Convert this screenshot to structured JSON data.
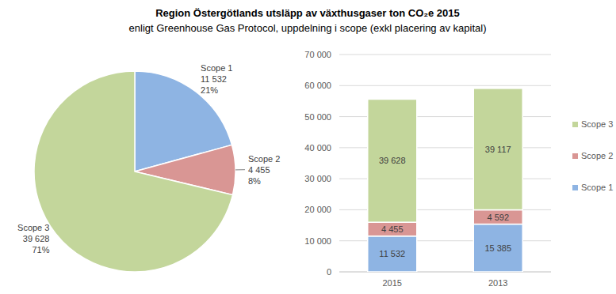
{
  "chart_data": [
    {
      "type": "pie",
      "title": "Region Östergötlands utsläpp av växthusgaser ton CO₂e 2015",
      "subtitle": "enligt Greenhouse Gas Protocol, uppdelning i scope (exkl placering av kapital)",
      "categories": [
        "Scope 1",
        "Scope 2",
        "Scope 3"
      ],
      "values": [
        11532,
        4455,
        39628
      ],
      "value_labels": [
        "11 532",
        "4 455",
        "39 628"
      ],
      "percents": [
        21,
        8,
        71
      ],
      "percent_labels": [
        "21%",
        "8%",
        "71%"
      ],
      "colors": [
        "#8eb4e3",
        "#d99694",
        "#c3d69b"
      ],
      "data_labels": true
    },
    {
      "type": "bar",
      "stacked": true,
      "categories": [
        "2015",
        "2013"
      ],
      "series": [
        {
          "name": "Scope 1",
          "color": "#8eb4e3",
          "values": [
            11532,
            15385
          ],
          "value_labels": [
            "11 532",
            "15 385"
          ]
        },
        {
          "name": "Scope 2",
          "color": "#d99694",
          "values": [
            4455,
            4592
          ],
          "value_labels": [
            "4 455",
            "4 592"
          ]
        },
        {
          "name": "Scope 3",
          "color": "#c3d69b",
          "values": [
            39628,
            39117
          ],
          "value_labels": [
            "39 628",
            "39 117"
          ]
        }
      ],
      "ylim": [
        0,
        70000
      ],
      "yticks": [
        0,
        {
          "value": 10000,
          "label": "10 000"
        },
        {
          "value": 20000,
          "label": "20 000"
        },
        {
          "value": 30000,
          "label": "30 000"
        },
        {
          "value": 40000,
          "label": "40 000"
        },
        {
          "value": 50000,
          "label": "50 000"
        },
        {
          "value": 60000,
          "label": "60 000"
        },
        {
          "value": 70000,
          "label": "70 000"
        }
      ],
      "grid": true,
      "legend": "right",
      "data_labels": true
    }
  ]
}
